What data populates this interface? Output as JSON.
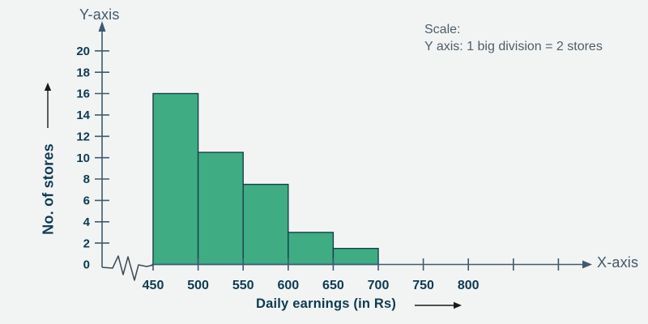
{
  "page": {
    "background": "#f2f4f3"
  },
  "labels": {
    "y_axis_name": "Y-axis",
    "x_axis_name": "X-axis",
    "y_title": "No. of stores",
    "x_title": "Daily earnings (in Rs)"
  },
  "scale_note": {
    "line1": "Scale:",
    "line2": "Y axis: 1 big division = 2 stores"
  },
  "chart_data": {
    "type": "bar",
    "subtype": "histogram",
    "title": "",
    "xlabel": "Daily earnings (in Rs)",
    "ylabel": "No. of stores",
    "bin_width": 50,
    "bins": [
      "450-500",
      "500-550",
      "550-600",
      "600-650",
      "650-700"
    ],
    "bin_starts": [
      450,
      500,
      550,
      600,
      650
    ],
    "values": [
      16,
      10.5,
      7.5,
      3,
      1.5
    ],
    "x_ticks": [
      450,
      500,
      550,
      600,
      650,
      700,
      750,
      800
    ],
    "x_ticks_unlabeled": [
      850,
      900
    ],
    "y_ticks": [
      0,
      2,
      4,
      6,
      8,
      10,
      12,
      14,
      16,
      18,
      20
    ],
    "ylim": [
      0,
      21
    ],
    "axis_break_before_first_bin": true,
    "grid": false,
    "legend": "none",
    "bar_color": "#3fac84",
    "bar_border_color": "#16404a",
    "axis_color": "#3e5a70",
    "tick_label_color": "#0e3a52",
    "arrow_color": "#1a1a1a"
  }
}
